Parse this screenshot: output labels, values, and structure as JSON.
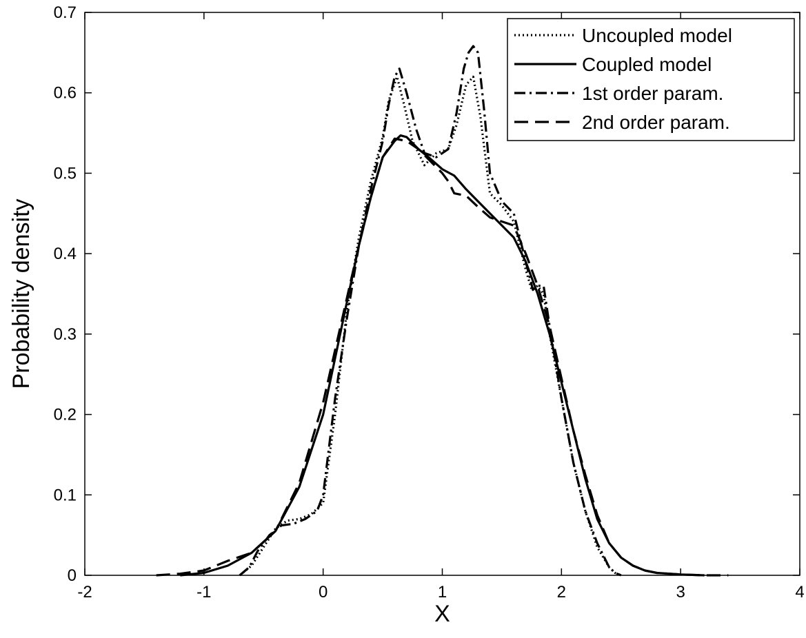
{
  "chart_data": {
    "type": "line",
    "xlabel": "X",
    "ylabel": "Probability density",
    "xlim": [
      -2,
      4
    ],
    "ylim": [
      0,
      0.7
    ],
    "xticks": [
      -2,
      -1,
      0,
      1,
      2,
      3,
      4
    ],
    "yticks": [
      0,
      0.1,
      0.2,
      0.3,
      0.4,
      0.5,
      0.6,
      0.7
    ],
    "xtick_labels": [
      "-2",
      "-1",
      "0",
      "1",
      "2",
      "3",
      "4"
    ],
    "ytick_labels": [
      "0",
      "0.1",
      "0.2",
      "0.3",
      "0.4",
      "0.5",
      "0.6",
      "0.7"
    ],
    "grid": false,
    "legend_position": "top-right",
    "series": [
      {
        "name": "Uncoupled model",
        "style": "dotted",
        "color": "#000000",
        "x": [
          -0.7,
          -0.6,
          -0.5,
          -0.4,
          -0.3,
          -0.2,
          -0.1,
          0.0,
          0.1,
          0.2,
          0.3,
          0.4,
          0.5,
          0.55,
          0.62,
          0.68,
          0.75,
          0.85,
          0.95,
          1.05,
          1.12,
          1.2,
          1.26,
          1.32,
          1.4,
          1.5,
          1.6,
          1.7,
          1.75,
          1.8,
          1.85,
          1.9,
          2.0,
          2.1,
          2.2,
          2.3,
          2.4,
          2.45,
          2.5
        ],
        "y": [
          0.0,
          0.012,
          0.035,
          0.058,
          0.068,
          0.07,
          0.076,
          0.09,
          0.2,
          0.33,
          0.42,
          0.49,
          0.545,
          0.59,
          0.62,
          0.585,
          0.54,
          0.51,
          0.525,
          0.53,
          0.56,
          0.61,
          0.62,
          0.57,
          0.475,
          0.46,
          0.44,
          0.38,
          0.355,
          0.36,
          0.35,
          0.3,
          0.22,
          0.14,
          0.08,
          0.035,
          0.01,
          0.003,
          0.0
        ]
      },
      {
        "name": "Coupled model",
        "style": "solid",
        "color": "#000000",
        "x": [
          -1.2,
          -1.0,
          -0.8,
          -0.6,
          -0.4,
          -0.2,
          0.0,
          0.1,
          0.2,
          0.3,
          0.4,
          0.5,
          0.6,
          0.65,
          0.7,
          0.8,
          0.9,
          1.0,
          1.1,
          1.2,
          1.3,
          1.4,
          1.5,
          1.6,
          1.7,
          1.8,
          1.9,
          2.0,
          2.1,
          2.2,
          2.3,
          2.4,
          2.5,
          2.6,
          2.7,
          2.8,
          3.0,
          3.2
        ],
        "y": [
          0.0,
          0.003,
          0.012,
          0.028,
          0.055,
          0.11,
          0.2,
          0.27,
          0.34,
          0.41,
          0.47,
          0.52,
          0.54,
          0.547,
          0.545,
          0.53,
          0.518,
          0.505,
          0.497,
          0.48,
          0.465,
          0.45,
          0.435,
          0.42,
          0.39,
          0.35,
          0.3,
          0.24,
          0.18,
          0.12,
          0.07,
          0.04,
          0.022,
          0.012,
          0.006,
          0.003,
          0.001,
          0.0
        ]
      },
      {
        "name": "1st order param.",
        "style": "dashdot",
        "color": "#000000",
        "x": [
          -0.7,
          -0.62,
          -0.55,
          -0.45,
          -0.35,
          -0.25,
          -0.15,
          -0.05,
          0.0,
          0.05,
          0.1,
          0.2,
          0.3,
          0.4,
          0.5,
          0.55,
          0.6,
          0.64,
          0.7,
          0.78,
          0.85,
          0.95,
          1.05,
          1.12,
          1.18,
          1.22,
          1.26,
          1.3,
          1.35,
          1.4,
          1.5,
          1.6,
          1.7,
          1.76,
          1.8,
          1.85,
          1.9,
          2.0,
          2.1,
          2.2,
          2.3,
          2.4,
          2.45,
          2.5
        ],
        "y": [
          0.0,
          0.01,
          0.03,
          0.05,
          0.062,
          0.064,
          0.07,
          0.08,
          0.1,
          0.16,
          0.22,
          0.32,
          0.41,
          0.48,
          0.54,
          0.585,
          0.62,
          0.63,
          0.6,
          0.555,
          0.525,
          0.52,
          0.53,
          0.575,
          0.63,
          0.65,
          0.658,
          0.65,
          0.58,
          0.5,
          0.465,
          0.45,
          0.39,
          0.355,
          0.36,
          0.36,
          0.31,
          0.22,
          0.14,
          0.08,
          0.04,
          0.01,
          0.003,
          0.0
        ]
      },
      {
        "name": "2nd order param.",
        "style": "dashed",
        "color": "#000000",
        "x": [
          -1.4,
          -1.2,
          -1.0,
          -0.8,
          -0.6,
          -0.4,
          -0.2,
          0.0,
          0.1,
          0.2,
          0.3,
          0.4,
          0.5,
          0.6,
          0.7,
          0.8,
          0.9,
          1.0,
          1.05,
          1.1,
          1.2,
          1.3,
          1.4,
          1.5,
          1.6,
          1.7,
          1.8,
          1.9,
          2.0,
          2.1,
          2.2,
          2.3,
          2.4,
          2.5,
          2.6,
          2.7,
          2.8,
          3.0,
          3.2,
          3.4
        ],
        "y": [
          0.0,
          0.002,
          0.006,
          0.018,
          0.028,
          0.055,
          0.115,
          0.215,
          0.28,
          0.345,
          0.41,
          0.47,
          0.52,
          0.543,
          0.54,
          0.53,
          0.515,
          0.5,
          0.49,
          0.475,
          0.472,
          0.458,
          0.445,
          0.44,
          0.435,
          0.4,
          0.36,
          0.31,
          0.245,
          0.18,
          0.125,
          0.075,
          0.04,
          0.022,
          0.012,
          0.006,
          0.003,
          0.001,
          0.0,
          0.0
        ]
      }
    ]
  }
}
